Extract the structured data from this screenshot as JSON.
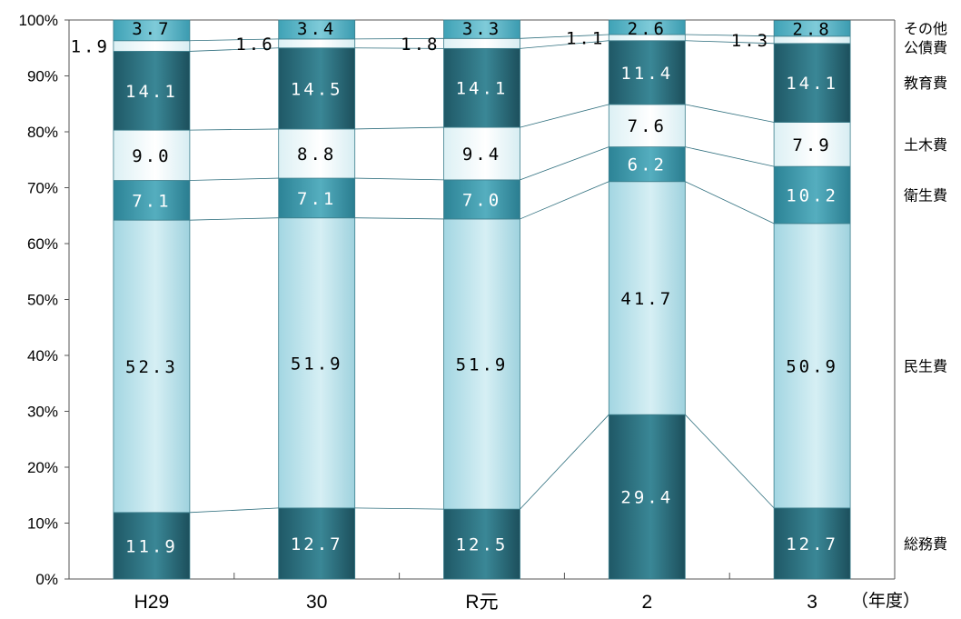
{
  "chart_data": {
    "type": "bar",
    "stacked": true,
    "percent": true,
    "categories": [
      "H29",
      "30",
      "R元",
      "2",
      "3"
    ],
    "x_unit_label": "（年度）",
    "yticks": [
      "0%",
      "10%",
      "20%",
      "30%",
      "40%",
      "50%",
      "60%",
      "70%",
      "80%",
      "90%",
      "100%"
    ],
    "ylim": [
      0,
      100
    ],
    "grid": false,
    "legend_position": "right",
    "series": [
      {
        "name": "総務費",
        "values": [
          11.9,
          12.7,
          12.5,
          29.4,
          12.7
        ],
        "labels": [
          "11.9",
          "12.7",
          "12.5",
          "29.4",
          "12.7"
        ],
        "color": "#2e7382"
      },
      {
        "name": "民生費",
        "values": [
          52.3,
          51.9,
          51.9,
          41.7,
          50.9
        ],
        "labels": [
          "52.3",
          "51.9",
          "51.9",
          "41.7",
          "50.9"
        ],
        "color": "#b9e1ea"
      },
      {
        "name": "衛生費",
        "values": [
          7.1,
          7.1,
          7.0,
          6.2,
          10.2
        ],
        "labels": [
          "7.1",
          "7.1",
          "7.0",
          "6.2",
          "10.2"
        ],
        "color": "#3f97aa"
      },
      {
        "name": "土木費",
        "values": [
          9.0,
          8.8,
          9.4,
          7.6,
          7.9
        ],
        "labels": [
          "9.0",
          "8.8",
          "9.4",
          "7.6",
          "7.9"
        ],
        "color": "#eaf7f9"
      },
      {
        "name": "教育費",
        "values": [
          14.1,
          14.5,
          14.1,
          11.4,
          14.1
        ],
        "labels": [
          "14.1",
          "14.5",
          "14.1",
          "11.4",
          "14.1"
        ],
        "color": "#2b6775"
      },
      {
        "name": "公債費",
        "values": [
          1.9,
          1.6,
          1.8,
          1.1,
          1.3
        ],
        "labels": [
          "1.9",
          "1.6",
          "1.8",
          "1.1",
          "1.3"
        ],
        "color": "#dff1f5"
      },
      {
        "name": "その他",
        "values": [
          3.7,
          3.4,
          3.3,
          2.6,
          2.8
        ],
        "labels": [
          "3.7",
          "3.4",
          "3.3",
          "2.6",
          "2.8"
        ],
        "color": "#5db6c7"
      }
    ]
  }
}
